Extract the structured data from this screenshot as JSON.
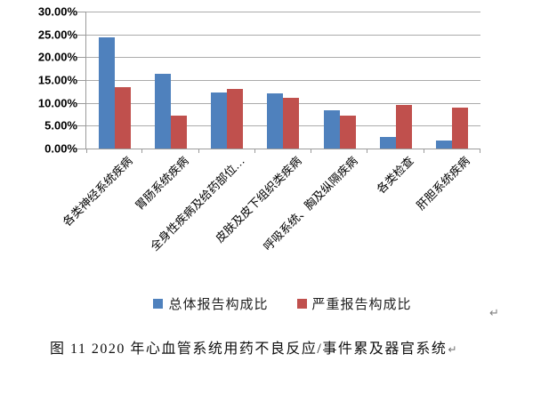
{
  "chart_data": {
    "type": "bar",
    "title": "",
    "xlabel": "",
    "ylabel": "",
    "categories": [
      "各类神经系统疾病",
      "胃肠系统疾病",
      "全身性疾病及给药部位…",
      "皮肤及皮下组织类疾病",
      "呼吸系统、胸及纵隔疾病",
      "各类检查",
      "肝胆系统疾病"
    ],
    "series": [
      {
        "name": "总体报告构成比",
        "color": "#4F81BD",
        "values": [
          24.4,
          16.3,
          12.2,
          12.0,
          8.4,
          2.5,
          1.8
        ]
      },
      {
        "name": "严重报告构成比",
        "color": "#C0504D",
        "values": [
          13.5,
          7.2,
          13.0,
          11.2,
          7.2,
          9.6,
          8.9
        ]
      }
    ],
    "value_unit": "%",
    "ylim": [
      0,
      30
    ],
    "y_tick_labels": [
      "30.00%",
      "25.00%",
      "20.00%",
      "15.00%",
      "10.00%",
      "5.00%",
      "0.00%"
    ],
    "grid": true,
    "legend_position": "bottom"
  },
  "caption": {
    "text": "图 11  2020 年心血管系统用药不良反应/事件累及器官系统"
  },
  "marks": {
    "return_symbol": "↵"
  },
  "colors": {
    "series_total": "#4F81BD",
    "series_serious": "#C0504D",
    "gridline": "#ABABAB",
    "axis": "#9B9B9B",
    "background": "#FFFFFF"
  }
}
